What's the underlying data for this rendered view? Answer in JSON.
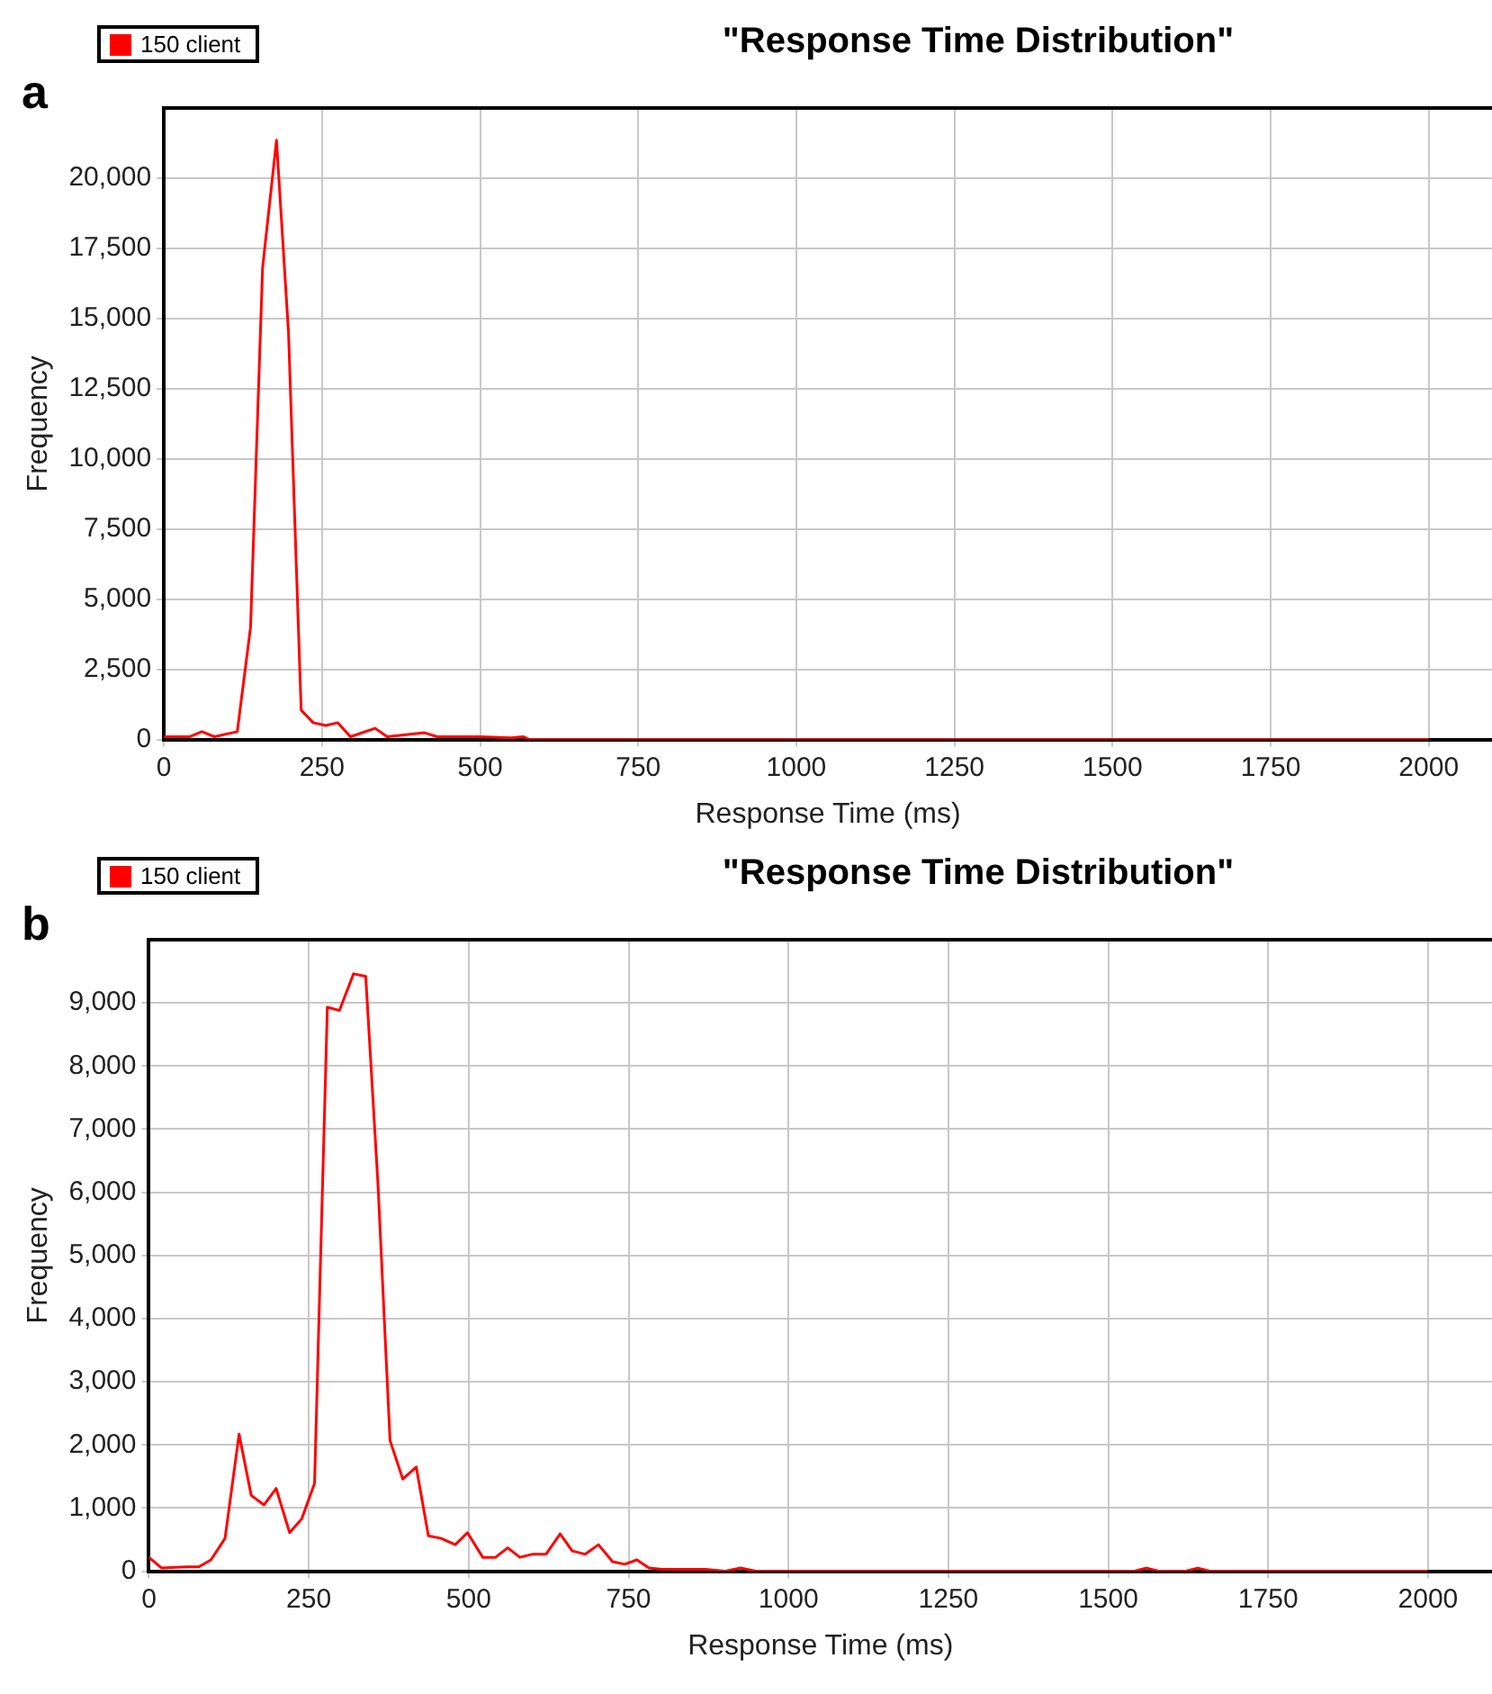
{
  "chart_data": [
    {
      "type": "line",
      "title": "\"Response Time Distribution\"",
      "xlabel": "Response Time (ms)",
      "ylabel": "Frequency",
      "annotations": [
        "a"
      ],
      "legend": "top left",
      "grid": true,
      "marker": "none",
      "line_style": "solid",
      "xlim": [
        0,
        2100
      ],
      "xticks": [
        0,
        250,
        500,
        750,
        1000,
        1250,
        1500,
        1750,
        2000
      ],
      "ylim": [
        0,
        22500
      ],
      "yticks": [
        0,
        {
          "value": 2500,
          "label": "2,500"
        },
        {
          "value": 5000,
          "label": "5,000"
        },
        {
          "value": 7500,
          "label": "7,500"
        },
        {
          "value": 10000,
          "label": "10,000"
        },
        {
          "value": 12500,
          "label": "12,500"
        },
        {
          "value": 15000,
          "label": "15,000"
        },
        {
          "value": 17500,
          "label": "17,500"
        },
        {
          "value": 20000,
          "label": "20,000"
        }
      ],
      "series": [
        {
          "name": "150 client",
          "color": "#ff0000",
          "x": [
            0,
            41,
            60,
            80,
            116,
            137,
            156,
            178,
            197,
            217,
            236,
            256,
            275,
            295,
            334,
            353,
            412,
            432,
            500,
            549,
            568,
            578,
            1000,
            1500,
            2000
          ],
          "values": [
            100,
            100,
            280,
            100,
            280,
            4000,
            16800,
            21350,
            14500,
            1050,
            600,
            500,
            600,
            100,
            400,
            100,
            240,
            100,
            100,
            60,
            100,
            0,
            0,
            0,
            0
          ]
        }
      ]
    },
    {
      "type": "line",
      "title": "\"Response Time Distribution\"",
      "xlabel": "Response Time (ms)",
      "ylabel": "Frequency",
      "annotations": [
        "b"
      ],
      "legend": "top left",
      "grid": true,
      "marker": "none",
      "line_style": "solid",
      "xlim": [
        0,
        2100
      ],
      "xticks": [
        0,
        250,
        500,
        750,
        1000,
        1250,
        1500,
        1750,
        2000
      ],
      "ylim": [
        0,
        10000
      ],
      "yticks": [
        0,
        {
          "value": 1000,
          "label": "1,000"
        },
        {
          "value": 2000,
          "label": "2,000"
        },
        {
          "value": 3000,
          "label": "3,000"
        },
        {
          "value": 4000,
          "label": "4,000"
        },
        {
          "value": 5000,
          "label": "5,000"
        },
        {
          "value": 6000,
          "label": "6,000"
        },
        {
          "value": 7000,
          "label": "7,000"
        },
        {
          "value": 8000,
          "label": "8,000"
        },
        {
          "value": 9000,
          "label": "9,000"
        }
      ],
      "series": [
        {
          "name": "150 client",
          "color": "#ff0000",
          "x": [
            0,
            20,
            59,
            78,
            97,
            119,
            141,
            160,
            180,
            199,
            220,
            239,
            259,
            279,
            298,
            320,
            339,
            358,
            377,
            397,
            418,
            437,
            457,
            479,
            498,
            522,
            542,
            561,
            580,
            600,
            621,
            643,
            662,
            682,
            703,
            725,
            744,
            763,
            782,
            802,
            870,
            900,
            925,
            950,
            1540,
            1560,
            1580,
            1620,
            1640,
            1660,
            2000
          ],
          "values": [
            220,
            50,
            70,
            70,
            180,
            520,
            2170,
            1200,
            1050,
            1310,
            610,
            830,
            1390,
            8930,
            8880,
            9460,
            9420,
            6160,
            2070,
            1460,
            1650,
            560,
            520,
            420,
            610,
            220,
            220,
            370,
            220,
            270,
            270,
            590,
            320,
            270,
            420,
            150,
            110,
            180,
            50,
            30,
            30,
            0,
            50,
            0,
            0,
            50,
            0,
            0,
            50,
            0,
            0
          ]
        }
      ]
    }
  ]
}
